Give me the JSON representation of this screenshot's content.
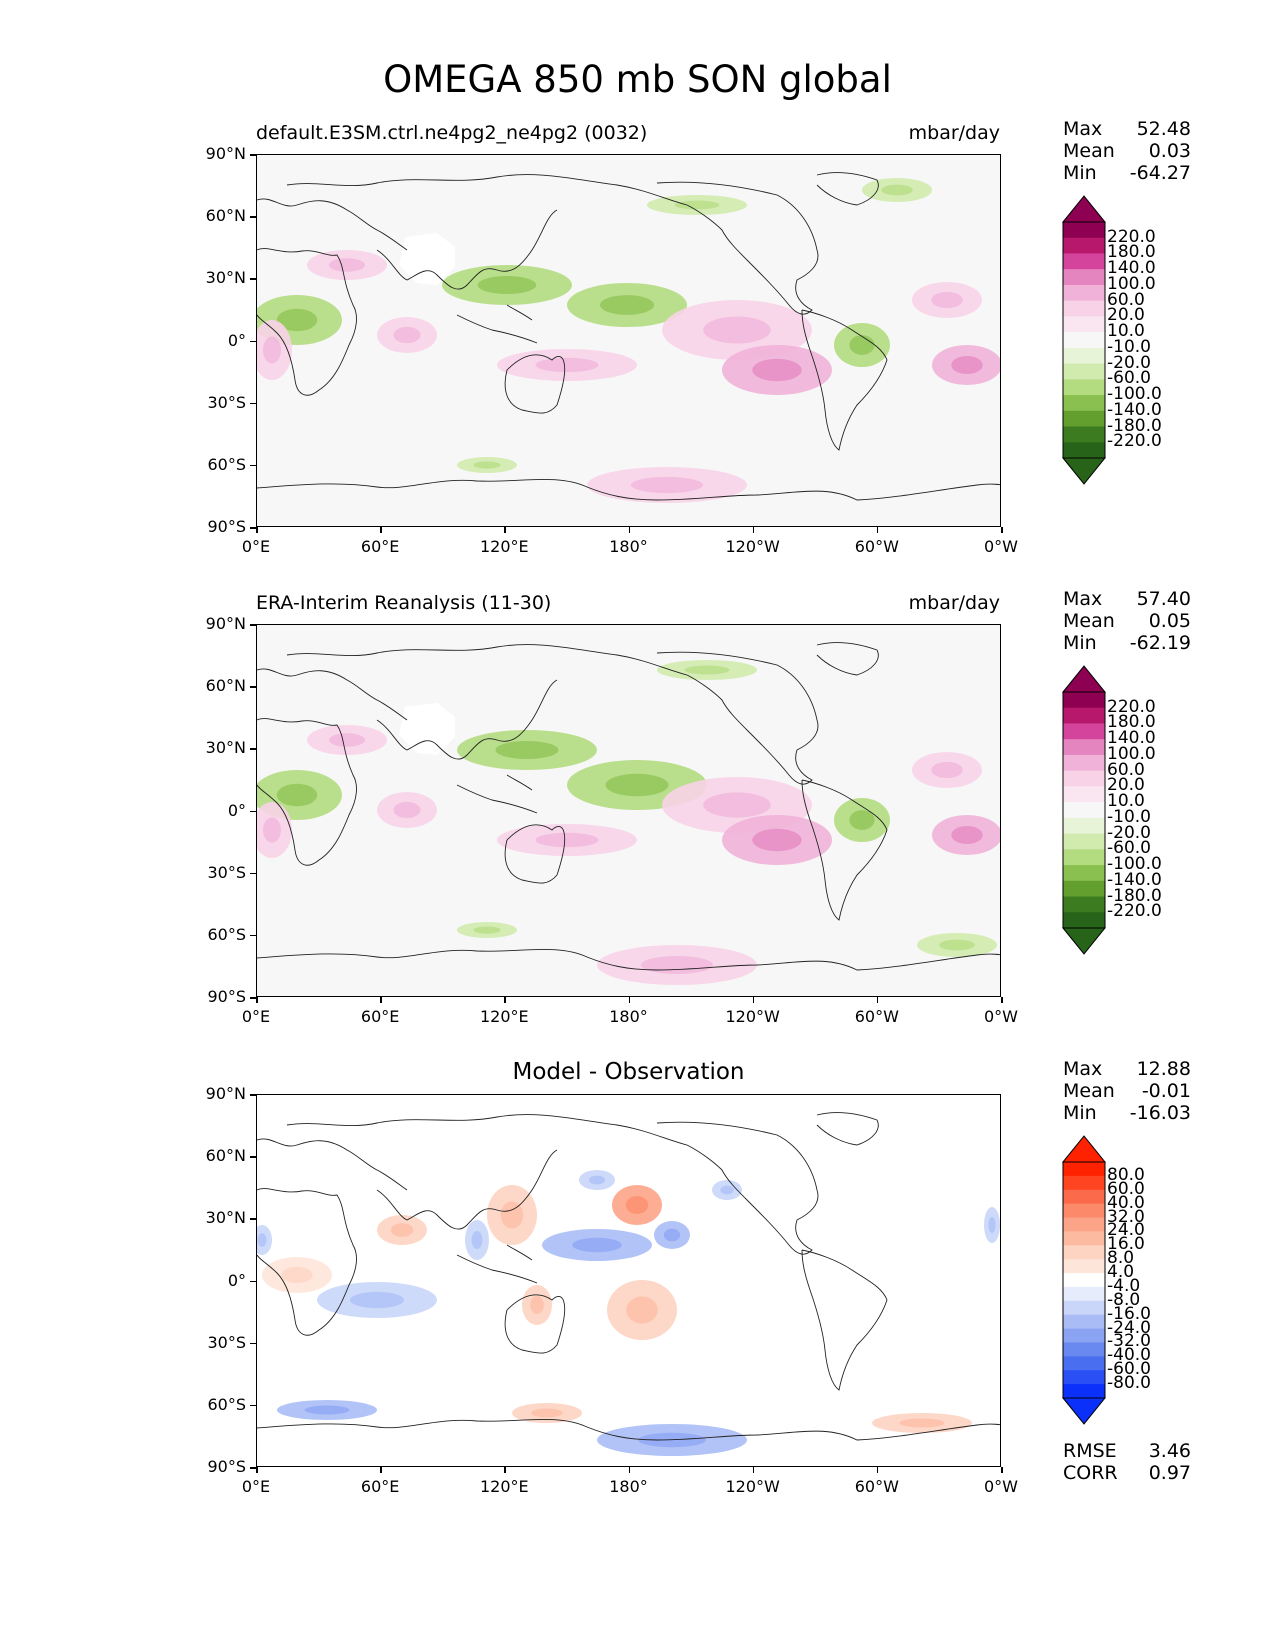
{
  "title": "OMEGA 850 mb SON global",
  "lat_ticks": [
    "90°N",
    "60°N",
    "30°N",
    "0°",
    "30°S",
    "60°S",
    "90°S"
  ],
  "lon_ticks": [
    "0°E",
    "60°E",
    "120°E",
    "180°",
    "120°W",
    "60°W",
    "0°W"
  ],
  "panels": [
    {
      "left_title": "default.E3SM.ctrl.ne4pg2_ne4pg2 (0032)",
      "right_title": "mbar/day",
      "center_title": "",
      "stats": [
        {
          "label": "Max",
          "value": "52.48"
        },
        {
          "label": "Mean",
          "value": "0.03"
        },
        {
          "label": "Min",
          "value": "-64.27"
        }
      ],
      "colorbar": {
        "labels": [
          "220.0",
          "180.0",
          "140.0",
          "100.0",
          "60.0",
          "20.0",
          "10.0",
          "-10.0",
          "-20.0",
          "-60.0",
          "-100.0",
          "-140.0",
          "-180.0",
          "-220.0"
        ],
        "colors": [
          "#8e0152",
          "#b8186b",
          "#d5449c",
          "#e585c0",
          "#f0b2d8",
          "#f8d3e8",
          "#fae6f1",
          "#f7f7f7",
          "#e8f4d8",
          "#d0ebad",
          "#b3dc80",
          "#8ac04f",
          "#629f2f",
          "#3d7b20",
          "#276419"
        ],
        "over": "#8e0152",
        "under": "#276419"
      },
      "footer": []
    },
    {
      "left_title": "ERA-Interim Reanalysis (11-30)",
      "right_title": "mbar/day",
      "center_title": "",
      "stats": [
        {
          "label": "Max",
          "value": "57.40"
        },
        {
          "label": "Mean",
          "value": "0.05"
        },
        {
          "label": "Min",
          "value": "-62.19"
        }
      ],
      "colorbar": {
        "labels": [
          "220.0",
          "180.0",
          "140.0",
          "100.0",
          "60.0",
          "20.0",
          "10.0",
          "-10.0",
          "-20.0",
          "-60.0",
          "-100.0",
          "-140.0",
          "-180.0",
          "-220.0"
        ],
        "colors": [
          "#8e0152",
          "#b8186b",
          "#d5449c",
          "#e585c0",
          "#f0b2d8",
          "#f8d3e8",
          "#fae6f1",
          "#f7f7f7",
          "#e8f4d8",
          "#d0ebad",
          "#b3dc80",
          "#8ac04f",
          "#629f2f",
          "#3d7b20",
          "#276419"
        ],
        "over": "#8e0152",
        "under": "#276419"
      },
      "footer": []
    },
    {
      "left_title": "",
      "right_title": "",
      "center_title": "Model - Observation",
      "stats": [
        {
          "label": "Max",
          "value": "12.88"
        },
        {
          "label": "Mean",
          "value": "-0.01"
        },
        {
          "label": "Min",
          "value": "-16.03"
        }
      ],
      "colorbar": {
        "labels": [
          "80.0",
          "60.0",
          "40.0",
          "32.0",
          "24.0",
          "16.0",
          "8.0",
          "4.0",
          "-4.0",
          "-8.0",
          "-16.0",
          "-24.0",
          "-32.0",
          "-40.0",
          "-60.0",
          "-80.0"
        ],
        "colors": [
          "#ff2200",
          "#ff4422",
          "#fb6a4a",
          "#fc8a6a",
          "#fca487",
          "#fcbba1",
          "#fdd3c1",
          "#fee5d9",
          "#ffffff",
          "#e6ecfc",
          "#c9d6fa",
          "#a9bcf6",
          "#8aa3f3",
          "#6a89f0",
          "#4a6ef0",
          "#2a50f5",
          "#0a30fa"
        ],
        "over": "#ff2200",
        "under": "#0a30fa"
      },
      "footer": [
        {
          "label": "RMSE",
          "value": "3.46"
        },
        {
          "label": "CORR",
          "value": "0.97"
        }
      ]
    }
  ]
}
